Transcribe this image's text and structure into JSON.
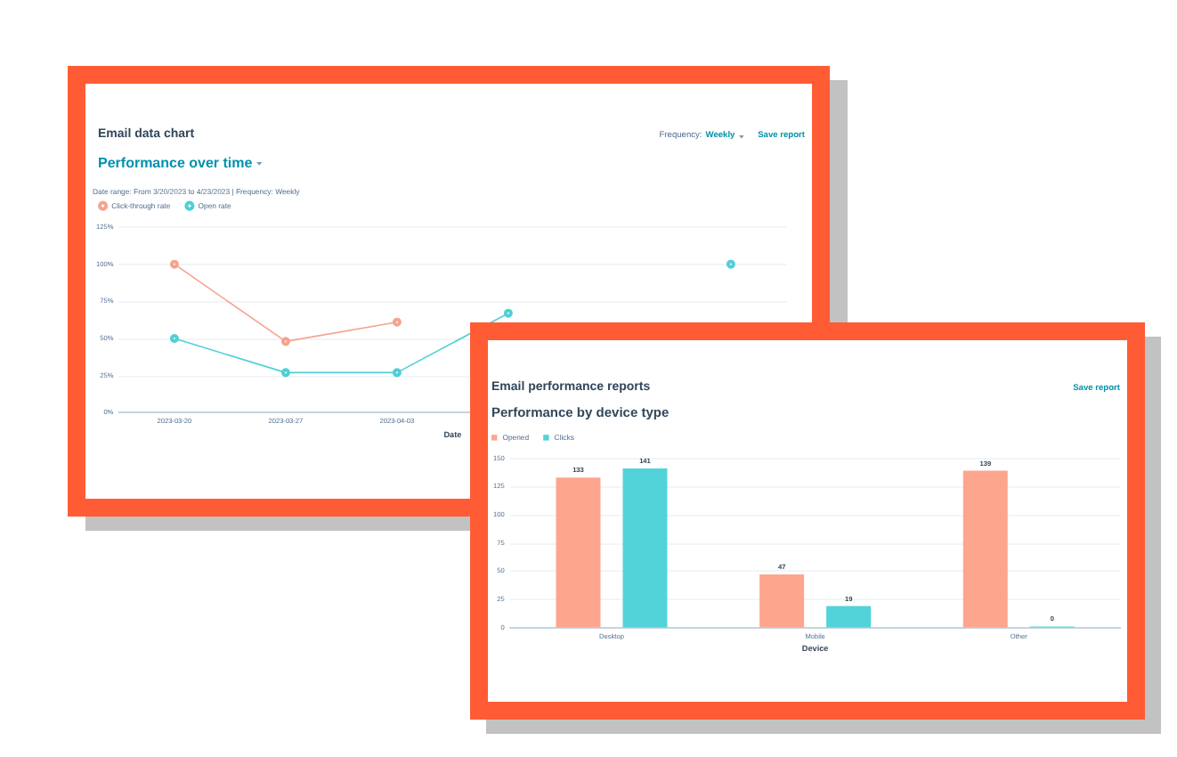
{
  "chart_data": [
    {
      "type": "line",
      "title": "Email data chart",
      "subtitle": "Performance over time",
      "xlabel": "Date",
      "categories": [
        "2023-03-20",
        "2023-03-27",
        "2023-04-03",
        null,
        null,
        null
      ],
      "series": [
        {
          "name": "Click-through rate",
          "color": "#f7a28e",
          "values": [
            100,
            48,
            61,
            null,
            null,
            null
          ]
        },
        {
          "name": "Open rate",
          "color": "#4fcfd6",
          "values": [
            50,
            27,
            27,
            67,
            null,
            100
          ]
        }
      ],
      "ylim": [
        0,
        125
      ],
      "yticks": [
        {
          "value": 0,
          "label": "0%"
        },
        {
          "value": 25,
          "label": "25%"
        },
        {
          "value": 50,
          "label": "50%"
        },
        {
          "value": 75,
          "label": "75%"
        },
        {
          "value": 100,
          "label": "100%"
        },
        {
          "value": 125,
          "label": "125%"
        }
      ],
      "grid": "y",
      "legend": "top left",
      "marker": "circle",
      "annotations": [
        "Date range: From 3/20/2023 to 4/23/2023 | Frequency: Weekly",
        "Frequency: Weekly",
        "Save report"
      ]
    },
    {
      "type": "bar",
      "title": "Email performance reports",
      "subtitle": "Performance by device type",
      "xlabel": "Device",
      "categories": [
        "Desktop",
        "Mobile",
        "Other"
      ],
      "series": [
        {
          "name": "Opened",
          "color": "#fea58e",
          "values": [
            133,
            47,
            139
          ]
        },
        {
          "name": "Clicks",
          "color": "#51d3d9",
          "values": [
            141,
            19,
            0
          ]
        }
      ],
      "ylim": [
        0,
        150
      ],
      "yticks": [
        0,
        25,
        50,
        75,
        100,
        125,
        150
      ],
      "grid": "y",
      "legend": "top left",
      "data_labels": true,
      "annotations": [
        "Save report"
      ]
    }
  ]
}
